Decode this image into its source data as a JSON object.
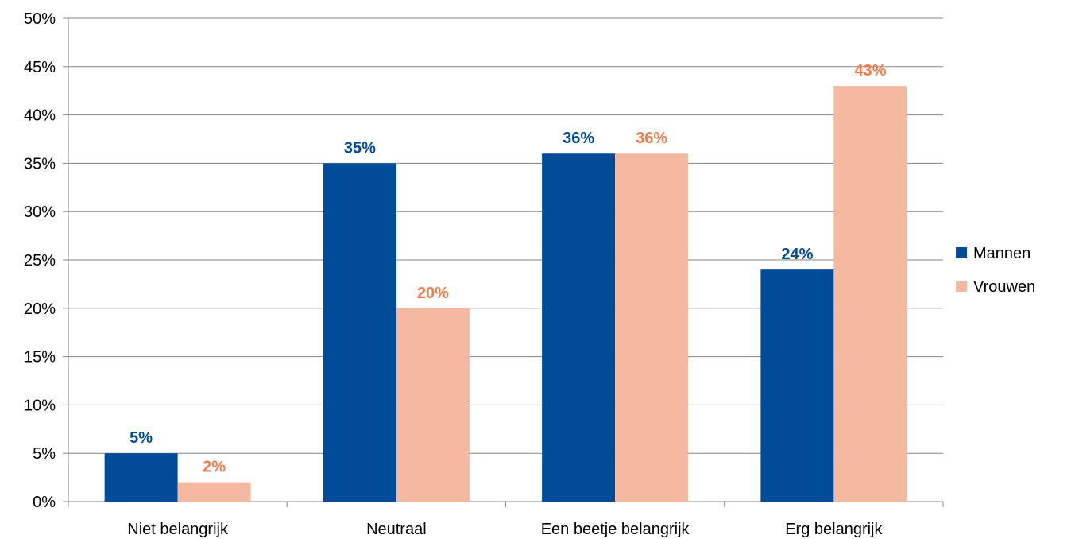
{
  "chart_data": {
    "type": "bar",
    "categories": [
      "Niet belangrijk",
      "Neutraal",
      "Een beetje belangrijk",
      "Erg belangrijk"
    ],
    "series": [
      {
        "name": "Mannen",
        "values": [
          5,
          35,
          36,
          24
        ],
        "labels": [
          "5%",
          "35%",
          "36%",
          "24%"
        ],
        "color": "#004C99",
        "label_color": "#004C99"
      },
      {
        "name": "Vrouwen",
        "values": [
          2,
          20,
          36,
          43
        ],
        "labels": [
          "2%",
          "20%",
          "36%",
          "43%"
        ],
        "color": "#F5B8A0",
        "label_color": "#F07C4A"
      }
    ],
    "y_ticks": [
      "0%",
      "5%",
      "10%",
      "15%",
      "20%",
      "25%",
      "30%",
      "35%",
      "40%",
      "45%",
      "50%"
    ],
    "ylim": [
      0,
      50
    ],
    "y_tick_step": 5,
    "grid": true,
    "grid_color": "#868686",
    "legend_position": "right",
    "title": "",
    "xlabel": "",
    "ylabel": ""
  }
}
